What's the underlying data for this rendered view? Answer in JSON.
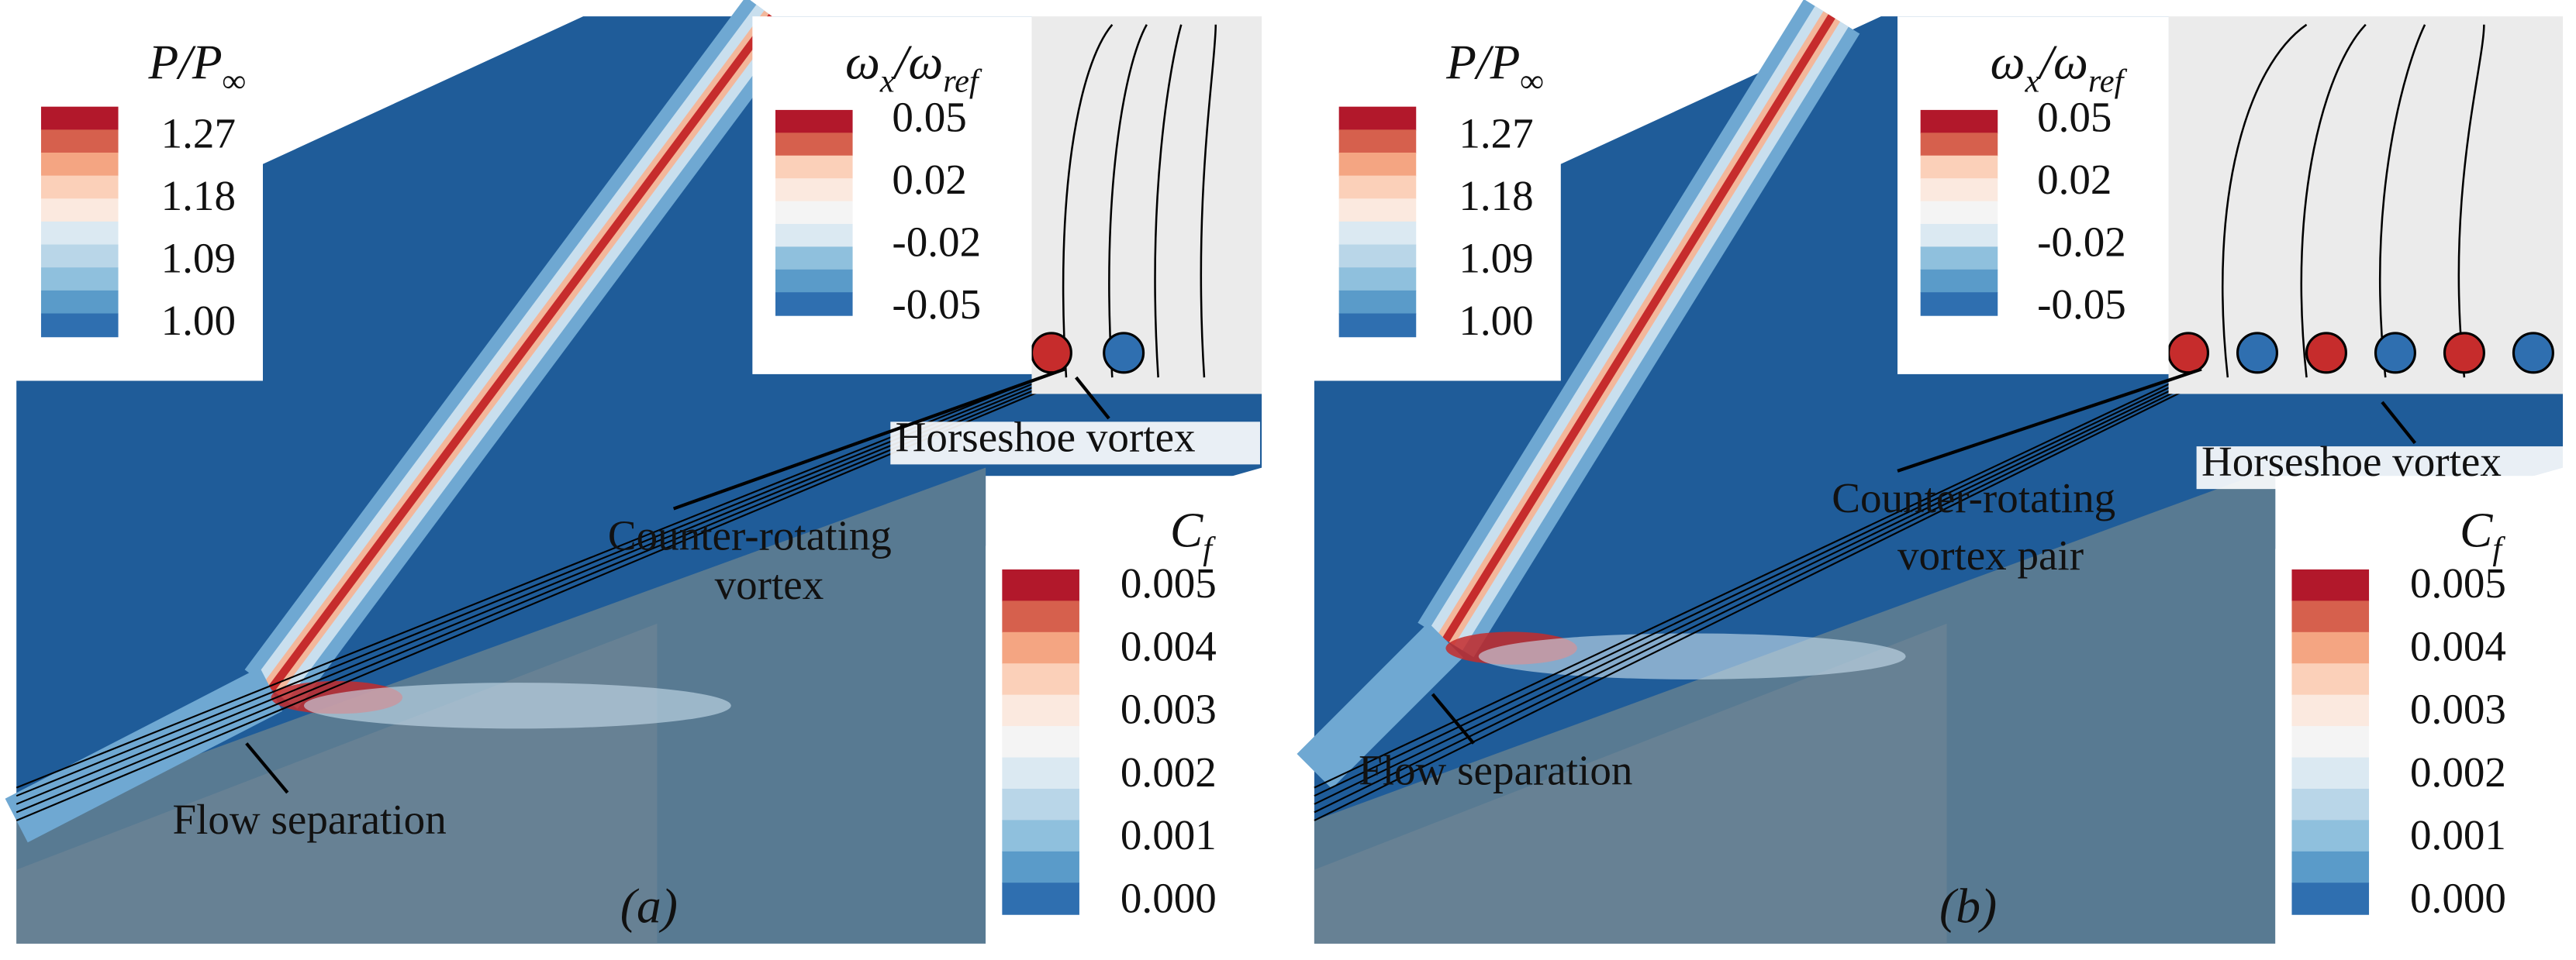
{
  "panels": [
    {
      "caption": "(a)",
      "pressure_legend": {
        "title": [
          "P/P",
          "∞"
        ],
        "labels": [
          "1.27",
          "1.18",
          "1.09",
          "1.00"
        ]
      },
      "vorticity_legend": {
        "title": [
          "ω",
          "x",
          "/ω",
          "ref"
        ],
        "labels": [
          "0.05",
          "0.02",
          "-0.02",
          "-0.05"
        ]
      },
      "cf_legend": {
        "title": [
          "C",
          "f"
        ],
        "labels": [
          "0.005",
          "0.004",
          "0.003",
          "0.002",
          "0.001",
          "0.000"
        ]
      },
      "annotations": {
        "horseshoe": "Horseshoe vortex",
        "counter_rotating": [
          "Counter-rotating",
          "vortex"
        ],
        "separation": "Flow separation"
      }
    },
    {
      "caption": "(b)",
      "pressure_legend": {
        "title": [
          "P/P",
          "∞"
        ],
        "labels": [
          "1.27",
          "1.18",
          "1.09",
          "1.00"
        ]
      },
      "vorticity_legend": {
        "title": [
          "ω",
          "x",
          "/ω",
          "ref"
        ],
        "labels": [
          "0.05",
          "0.02",
          "-0.02",
          "-0.05"
        ]
      },
      "cf_legend": {
        "title": [
          "C",
          "f"
        ],
        "labels": [
          "0.005",
          "0.004",
          "0.003",
          "0.002",
          "0.001",
          "0.000"
        ]
      },
      "annotations": {
        "horseshoe": "Horseshoe vortex",
        "counter_rotating": [
          "Counter-rotating",
          "vortex pair"
        ],
        "separation": "Flow separation"
      }
    }
  ]
}
